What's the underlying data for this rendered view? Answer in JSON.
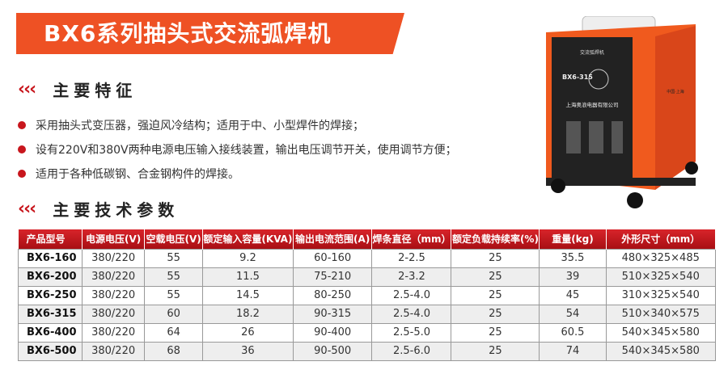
{
  "title": "BX6系列抽头式交流弧焊机",
  "features": {
    "heading": "主要特征",
    "items": [
      "采用抽头式变压器，强迫风冷结构；适用于中、小型焊件的焊接；",
      "设有220V和380V两种电源电压输入接线装置，输出电压调节开关，使用调节方便；",
      "适用于各种低碳钢、合金钢构件的焊接。"
    ]
  },
  "specs": {
    "heading": "主要技术参数",
    "headers": [
      "产品型号",
      "电源电压(V)",
      "空载电压(V)",
      "额定输入容量(KVA)",
      "输出电流范围(A)",
      "焊条直径（mm）",
      "额定负载持续率(%)",
      "重量(kg)",
      "外形尺寸（mm）"
    ],
    "rows": [
      [
        "BX6-160",
        "380/220",
        "55",
        "9.2",
        "60-160",
        "2-2.5",
        "25",
        "35.5",
        "480×325×485"
      ],
      [
        "BX6-200",
        "380/220",
        "55",
        "11.5",
        "75-210",
        "2-3.2",
        "25",
        "39",
        "510×325×540"
      ],
      [
        "BX6-250",
        "380/220",
        "55",
        "14.5",
        "80-250",
        "2.5-4.0",
        "25",
        "45",
        "310×325×540"
      ],
      [
        "BX6-315",
        "380/220",
        "60",
        "18.2",
        "90-315",
        "2.5-4.0",
        "25",
        "54",
        "510×340×575"
      ],
      [
        "BX6-400",
        "380/220",
        "64",
        "26",
        "90-400",
        "2.5-5.0",
        "25",
        "60.5",
        "540×345×580"
      ],
      [
        "BX6-500",
        "380/220",
        "68",
        "36",
        "90-500",
        "2.5-6.0",
        "25",
        "74",
        "540×345×580"
      ]
    ]
  },
  "machine": {
    "panel_label": "交流弧焊机",
    "model": "BX6-315",
    "company": "上海奥浪电器有限公司",
    "brand": "中国·上海"
  },
  "colors": {
    "accent": "#ee5124",
    "red": "#c8161d"
  }
}
